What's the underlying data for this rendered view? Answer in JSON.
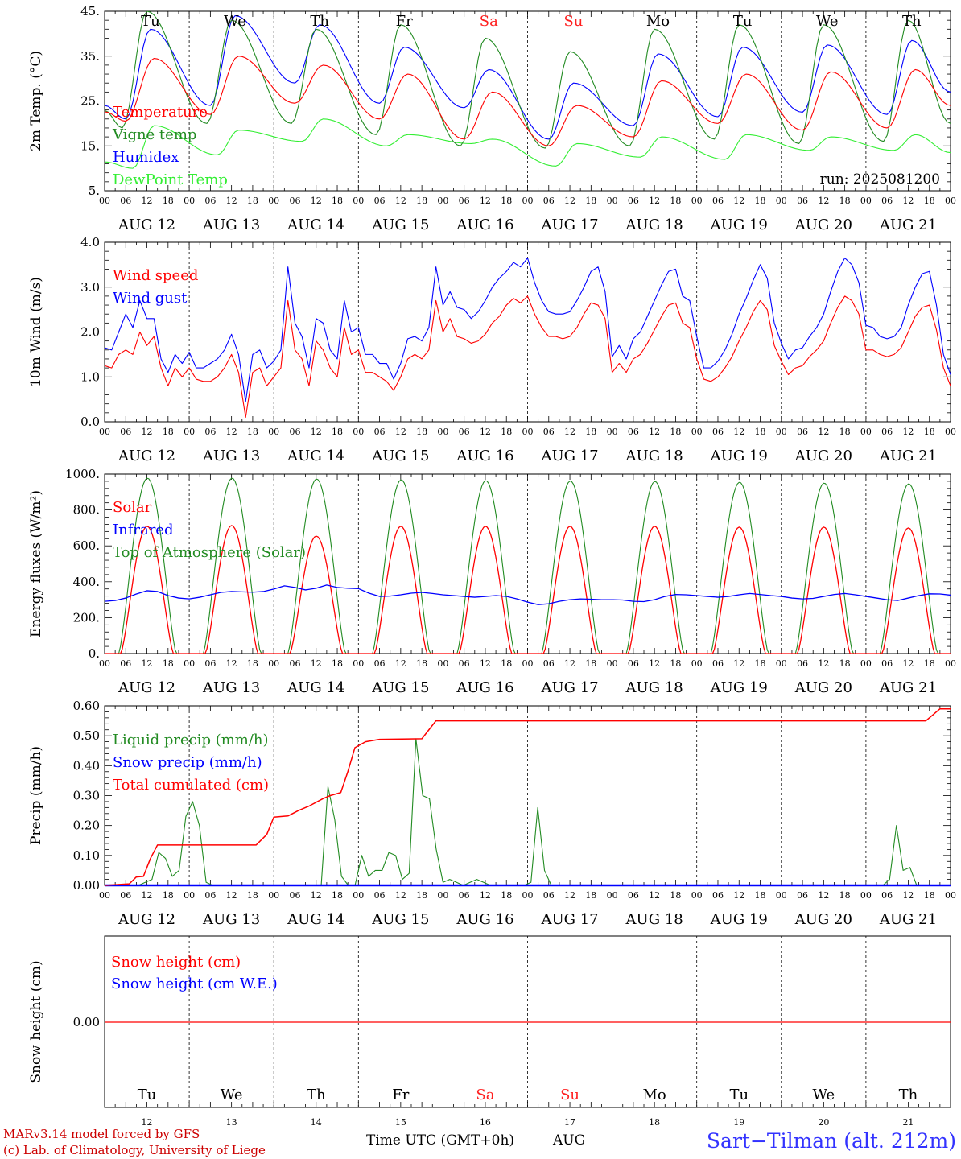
{
  "chart_data": [
    {
      "type": "line",
      "ylabel": "2m Temp. (°C)",
      "ylim": [
        5,
        45
      ],
      "yticks": [
        "5.",
        "15.",
        "25.",
        "35.",
        "45."
      ],
      "run_label": "run: 2025081200",
      "day_names": [
        "Tu",
        "We",
        "Th",
        "Fr",
        "Sa",
        "Su",
        "Mo",
        "Tu",
        "We",
        "Th"
      ],
      "weekend_color": "#ff2020",
      "series": [
        {
          "name": "Temperature",
          "color": "#ff0000",
          "mins": [
            20.5,
            22,
            24.5,
            21,
            16.5,
            15,
            17,
            20,
            18.5,
            19
          ],
          "maxs": [
            34.5,
            35,
            33,
            31,
            27,
            24,
            29.5,
            31,
            31.5,
            32
          ],
          "end": 24
        },
        {
          "name": "Vigne temp",
          "color": "#228b22",
          "mins": [
            19,
            20,
            20,
            17.5,
            15,
            14.5,
            15,
            16.5,
            15.5,
            16
          ],
          "maxs": [
            45,
            43,
            41,
            42,
            39,
            36,
            41,
            42,
            42,
            43
          ],
          "end": 20
        },
        {
          "name": "Humidex",
          "color": "#0000ff",
          "mins": [
            21,
            24,
            29,
            24.5,
            23.5,
            16.5,
            19.5,
            21.5,
            22.5,
            22
          ],
          "maxs": [
            41,
            44,
            42,
            37,
            32,
            29,
            35.5,
            37,
            37.5,
            38.5
          ],
          "end": 27
        },
        {
          "name": "DewPoint Temp",
          "color": "#33ee33",
          "mins": [
            10,
            13,
            16,
            15,
            15.5,
            10.5,
            12.5,
            12,
            14,
            14
          ],
          "maxs": [
            19.5,
            18.5,
            21,
            17.5,
            16.5,
            15.5,
            17,
            17.5,
            17,
            17.5
          ],
          "end": 13.5
        }
      ]
    },
    {
      "type": "line",
      "ylabel": "10m Wind (m/s)",
      "ylim": [
        0,
        4
      ],
      "yticks": [
        "0.0",
        "1.0",
        "2.0",
        "3.0",
        "4.0"
      ],
      "series": [
        {
          "name": "Wind speed",
          "color": "#ff0000",
          "values": [
            1.25,
            1.2,
            1.5,
            1.6,
            1.5,
            2.0,
            1.7,
            1.9,
            1.2,
            0.8,
            1.2,
            1.0,
            1.2,
            0.95,
            0.9,
            0.9,
            1.0,
            1.2,
            1.5,
            1.1,
            0.1,
            1.1,
            1.2,
            0.8,
            1.0,
            1.2,
            2.7,
            1.6,
            1.4,
            0.8,
            1.8,
            1.6,
            1.2,
            1.0,
            2.1,
            1.5,
            1.6,
            1.1,
            1.1,
            1.0,
            0.9,
            0.7,
            1.0,
            1.4,
            1.5,
            1.4,
            1.6,
            2.7,
            2.0,
            2.3,
            1.9,
            1.85,
            1.75,
            1.8,
            1.95,
            2.2,
            2.35,
            2.6,
            2.75,
            2.65,
            2.8,
            2.4,
            2.1,
            1.9,
            1.9,
            1.85,
            1.9,
            2.1,
            2.4,
            2.65,
            2.6,
            2.3,
            1.1,
            1.3,
            1.1,
            1.4,
            1.5,
            1.75,
            2.05,
            2.35,
            2.6,
            2.65,
            2.2,
            2.1,
            1.4,
            0.95,
            0.9,
            1.0,
            1.2,
            1.45,
            1.8,
            2.1,
            2.45,
            2.7,
            2.5,
            1.7,
            1.35,
            1.05,
            1.2,
            1.25,
            1.45,
            1.6,
            1.8,
            2.2,
            2.55,
            2.8,
            2.7,
            2.4,
            1.6,
            1.6,
            1.5,
            1.45,
            1.5,
            1.65,
            2.0,
            2.35,
            2.55,
            2.6,
            2.05,
            1.2,
            0.8
          ]
        },
        {
          "name": "Wind gust",
          "color": "#0000ff",
          "values": [
            1.65,
            1.6,
            2.0,
            2.4,
            2.1,
            2.7,
            2.3,
            2.3,
            1.4,
            1.1,
            1.5,
            1.3,
            1.55,
            1.2,
            1.2,
            1.3,
            1.4,
            1.6,
            1.95,
            1.5,
            0.45,
            1.5,
            1.6,
            1.2,
            1.35,
            1.6,
            3.45,
            2.2,
            1.9,
            1.2,
            2.3,
            2.2,
            1.6,
            1.4,
            2.7,
            2.0,
            2.1,
            1.5,
            1.5,
            1.3,
            1.3,
            0.95,
            1.3,
            1.85,
            1.9,
            1.8,
            2.1,
            3.45,
            2.6,
            2.9,
            2.55,
            2.5,
            2.3,
            2.45,
            2.7,
            3.0,
            3.2,
            3.35,
            3.55,
            3.45,
            3.65,
            3.1,
            2.7,
            2.45,
            2.4,
            2.4,
            2.45,
            2.7,
            3.0,
            3.35,
            3.45,
            2.9,
            1.45,
            1.7,
            1.4,
            1.85,
            2.0,
            2.35,
            2.7,
            3.05,
            3.35,
            3.4,
            2.8,
            2.7,
            1.9,
            1.2,
            1.2,
            1.35,
            1.6,
            1.95,
            2.4,
            2.75,
            3.15,
            3.5,
            3.2,
            2.2,
            1.75,
            1.4,
            1.6,
            1.65,
            1.9,
            2.1,
            2.4,
            2.9,
            3.35,
            3.65,
            3.5,
            3.1,
            2.15,
            2.1,
            1.9,
            1.85,
            1.9,
            2.1,
            2.6,
            3.0,
            3.3,
            3.35,
            2.6,
            1.5,
            1.05
          ]
        }
      ]
    },
    {
      "type": "line",
      "ylabel": "Energy fluxes (W/m²)",
      "ylim": [
        0,
        1100
      ],
      "yticks": [
        "0.",
        "200.",
        "400.",
        "600.",
        "800.",
        "1000."
      ],
      "series": [
        {
          "name": "Solar",
          "color": "#ff0000",
          "daily_peak": [
            780,
            785,
            720,
            780,
            780,
            780,
            780,
            775,
            775,
            770
          ]
        },
        {
          "name": "Infrared",
          "color": "#0000ff",
          "values": [
            320,
            325,
            340,
            365,
            385,
            380,
            355,
            340,
            335,
            345,
            360,
            375,
            380,
            378,
            376,
            380,
            395,
            415,
            405,
            390,
            400,
            420,
            405,
            400,
            398,
            370,
            350,
            352,
            360,
            370,
            375,
            368,
            360,
            355,
            350,
            345,
            350,
            355,
            350,
            335,
            315,
            300,
            305,
            320,
            330,
            335,
            333,
            330,
            330,
            328,
            320,
            318,
            330,
            350,
            362,
            360,
            355,
            350,
            345,
            350,
            360,
            368,
            362,
            355,
            350,
            340,
            335,
            338,
            350,
            362,
            368,
            360,
            350,
            340,
            330,
            325,
            340,
            355,
            366,
            365,
            358
          ]
        },
        {
          "name": "Top of Atmosphere (Solar)",
          "color": "#228b22",
          "daily_peak": [
            1075,
            1075,
            1070,
            1065,
            1060,
            1058,
            1055,
            1050,
            1045,
            1040
          ]
        }
      ]
    },
    {
      "type": "line",
      "ylabel": "Precip (mm/h)",
      "ylim": [
        0,
        0.6
      ],
      "yticks": [
        "0.00",
        "0.10",
        "0.20",
        "0.30",
        "0.40",
        "0.50",
        "0.60"
      ],
      "series": [
        {
          "name": "Liquid precip (mm/h)",
          "color": "#228b22",
          "values": [
            0,
            0,
            0,
            0,
            0,
            0,
            0.01,
            0.02,
            0.11,
            0.09,
            0.03,
            0.05,
            0.23,
            0.28,
            0.2,
            0.01,
            0,
            0,
            0,
            0,
            0,
            0,
            0,
            0,
            0,
            0,
            0,
            0,
            0,
            0,
            0,
            0,
            0,
            0.33,
            0.22,
            0.03,
            0,
            0,
            0.1,
            0.03,
            0.05,
            0.05,
            0.11,
            0.1,
            0.02,
            0.04,
            0.49,
            0.3,
            0.29,
            0.12,
            0.01,
            0.02,
            0.01,
            0,
            0.01,
            0.02,
            0.01,
            0,
            0,
            0,
            0,
            0,
            0,
            0.01,
            0.26,
            0.05,
            0,
            0,
            0,
            0,
            0,
            0,
            0,
            0,
            0,
            0,
            0,
            0,
            0,
            0,
            0,
            0,
            0,
            0,
            0,
            0,
            0,
            0,
            0,
            0,
            0,
            0,
            0,
            0,
            0,
            0,
            0,
            0,
            0,
            0,
            0,
            0,
            0,
            0,
            0,
            0,
            0,
            0,
            0,
            0,
            0,
            0,
            0,
            0,
            0,
            0,
            0.02,
            0.2,
            0.05,
            0.06,
            0,
            0,
            0,
            0,
            0,
            0
          ]
        },
        {
          "name": "Snow precip (mm/h)",
          "color": "#0000ff",
          "values": [
            0
          ]
        },
        {
          "name": "Total cumulated (cm)",
          "color": "#ff0000",
          "points": [
            [
              0,
              0
            ],
            [
              7,
              0.005
            ],
            [
              9,
              0.028
            ],
            [
              11,
              0.03
            ],
            [
              13,
              0.09
            ],
            [
              15,
              0.135
            ],
            [
              43,
              0.135
            ],
            [
              46,
              0.17
            ],
            [
              48,
              0.228
            ],
            [
              52,
              0.232
            ],
            [
              55,
              0.25
            ],
            [
              58,
              0.265
            ],
            [
              62,
              0.29
            ],
            [
              64,
              0.3
            ],
            [
              67,
              0.31
            ],
            [
              69,
              0.38
            ],
            [
              71,
              0.46
            ],
            [
              74,
              0.48
            ],
            [
              78,
              0.488
            ],
            [
              90,
              0.49
            ],
            [
              92,
              0.52
            ],
            [
              94,
              0.55
            ],
            [
              233,
              0.55
            ],
            [
              235,
              0.57
            ],
            [
              237,
              0.59
            ],
            [
              240,
              0.59
            ]
          ]
        }
      ]
    },
    {
      "type": "line",
      "ylabel": "Snow height (cm)",
      "yticks": [
        "0.00"
      ],
      "series": [
        {
          "name": "Snow height (cm)",
          "color": "#ff0000",
          "values": [
            0
          ]
        },
        {
          "name": "Snow height (cm W.E.)",
          "color": "#0000ff",
          "values": [
            0
          ]
        }
      ]
    }
  ],
  "axis": {
    "hour_ticks": [
      "00",
      "06",
      "12",
      "18"
    ],
    "end_hour": "00",
    "dates": [
      "AUG 12",
      "AUG 13",
      "AUG 14",
      "AUG 15",
      "AUG 16",
      "AUG 17",
      "AUG 18",
      "AUG 19",
      "AUG 20",
      "AUG 21"
    ],
    "day_numbers": [
      "12",
      "13",
      "14",
      "15",
      "16",
      "17",
      "18",
      "19",
      "20",
      "21"
    ],
    "title": "Time UTC (GMT+0h)",
    "month": "AUG"
  },
  "footer": {
    "model_line": "MARv3.14 model forced by GFS",
    "credit_line": "(c) Lab. of Climatology, University of Liege",
    "site": "Sart−Tilman (alt. 212m)"
  }
}
